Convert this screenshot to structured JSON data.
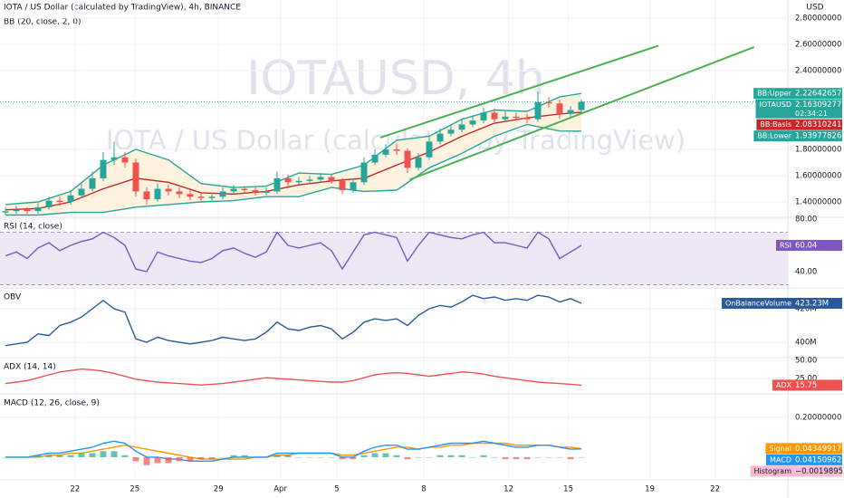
{
  "chart_data": [
    {
      "type": "candlestick",
      "title": "IOTA / US Dollar (calculated by TradingView), 4h, BINANCE",
      "subtitle": "BB (20, close, 2, 0)",
      "watermark": [
        "IOTAUSD, 4h",
        "IOTA / US Dollar (calculated by TradingView)"
      ],
      "currency": "USD",
      "symbol": "IOTAUSD",
      "countdown": "02:34:21",
      "up_color": "#26a69a",
      "down_color": "#ef5350",
      "grid": true,
      "xlim": [
        -0.5,
        72
      ],
      "xticks": [
        {
          "value": 6.4,
          "label": "22"
        },
        {
          "value": 11.9,
          "label": "25"
        },
        {
          "value": 19.6,
          "label": "29"
        },
        {
          "value": 25.3,
          "label": "Apr"
        },
        {
          "value": 30.5,
          "label": "5"
        },
        {
          "value": 38.5,
          "label": "8"
        },
        {
          "value": 46.3,
          "label": "12"
        },
        {
          "value": 51.8,
          "label": "15"
        },
        {
          "value": 59.3,
          "label": "19"
        },
        {
          "value": 65.3,
          "label": "22"
        }
      ],
      "ylim": [
        1.283,
        2.938
      ],
      "yticks": [
        {
          "value": 1.4,
          "label": "1.40000000"
        },
        {
          "value": 1.6,
          "label": "1.60000000"
        },
        {
          "value": 1.8,
          "label": "1.80000000"
        },
        {
          "value": 2.4,
          "label": "2.40000000"
        },
        {
          "value": 2.6,
          "label": "2.60000000"
        },
        {
          "value": 2.8,
          "label": "2.80000000"
        }
      ],
      "open": [
        1.32,
        1.33,
        1.34,
        1.33,
        1.36,
        1.41,
        1.4,
        1.45,
        1.5,
        1.58,
        1.72,
        1.74,
        1.7,
        1.48,
        1.42,
        1.5,
        1.48,
        1.46,
        1.44,
        1.43,
        1.44,
        1.48,
        1.5,
        1.49,
        1.47,
        1.48,
        1.58,
        1.55,
        1.56,
        1.57,
        1.59,
        1.56,
        1.49,
        1.55,
        1.7,
        1.76,
        1.8,
        1.79,
        1.66,
        1.74,
        1.86,
        1.92,
        1.95,
        1.99,
        2.02,
        2.08,
        2.03,
        2.05,
        2.04,
        2.03,
        2.16,
        2.15,
        2.07,
        2.1
      ],
      "high": [
        1.36,
        1.37,
        1.36,
        1.39,
        1.44,
        1.44,
        1.49,
        1.54,
        1.63,
        1.78,
        1.86,
        1.78,
        1.73,
        1.51,
        1.54,
        1.53,
        1.51,
        1.49,
        1.47,
        1.47,
        1.51,
        1.53,
        1.52,
        1.52,
        1.51,
        1.63,
        1.61,
        1.59,
        1.6,
        1.62,
        1.61,
        1.58,
        1.58,
        1.74,
        1.8,
        1.84,
        1.84,
        1.81,
        1.77,
        1.9,
        1.96,
        1.99,
        2.03,
        2.06,
        2.12,
        2.11,
        2.09,
        2.08,
        2.07,
        2.24,
        2.2,
        2.18,
        2.13,
        2.18
      ],
      "low": [
        1.3,
        1.31,
        1.31,
        1.31,
        1.34,
        1.37,
        1.38,
        1.43,
        1.48,
        1.56,
        1.68,
        1.66,
        1.44,
        1.38,
        1.4,
        1.45,
        1.43,
        1.41,
        1.4,
        1.41,
        1.42,
        1.46,
        1.47,
        1.45,
        1.45,
        1.46,
        1.52,
        1.53,
        1.54,
        1.55,
        1.54,
        1.46,
        1.47,
        1.53,
        1.68,
        1.74,
        1.76,
        1.62,
        1.64,
        1.72,
        1.84,
        1.9,
        1.93,
        1.97,
        2.0,
        2.0,
        2.01,
        2.02,
        2.0,
        2.01,
        2.12,
        2.03,
        2.05,
        2.08
      ],
      "close": [
        1.33,
        1.34,
        1.33,
        1.36,
        1.41,
        1.4,
        1.45,
        1.5,
        1.58,
        1.72,
        1.74,
        1.7,
        1.48,
        1.42,
        1.5,
        1.48,
        1.46,
        1.44,
        1.43,
        1.44,
        1.48,
        1.5,
        1.49,
        1.47,
        1.48,
        1.58,
        1.55,
        1.56,
        1.57,
        1.59,
        1.56,
        1.49,
        1.55,
        1.7,
        1.76,
        1.8,
        1.79,
        1.66,
        1.74,
        1.86,
        1.92,
        1.95,
        1.99,
        2.02,
        2.08,
        2.03,
        2.05,
        2.04,
        2.03,
        2.16,
        2.15,
        2.07,
        2.1,
        2.16309277
      ],
      "last_color": "#26a69a",
      "band_fill": "#fff3e0",
      "series": [
        {
          "name": "BB:Upper",
          "color": "#26a69a",
          "x": [
            0,
            3,
            6,
            9,
            12,
            15,
            18,
            21,
            24,
            27,
            30,
            33,
            36,
            39,
            42,
            45,
            48,
            51,
            53
          ],
          "values": [
            1.38,
            1.4,
            1.48,
            1.68,
            1.8,
            1.72,
            1.54,
            1.51,
            1.52,
            1.62,
            1.61,
            1.68,
            1.87,
            1.9,
            2.03,
            2.1,
            2.09,
            2.2,
            2.22642657
          ]
        },
        {
          "name": "BB:Basis",
          "color": "#c62828",
          "x": [
            0,
            3,
            6,
            9,
            12,
            15,
            18,
            21,
            24,
            27,
            30,
            33,
            36,
            39,
            42,
            45,
            48,
            51,
            53
          ],
          "values": [
            1.34,
            1.35,
            1.4,
            1.5,
            1.58,
            1.55,
            1.47,
            1.46,
            1.48,
            1.53,
            1.56,
            1.58,
            1.68,
            1.78,
            1.9,
            2.0,
            2.04,
            2.07,
            2.08310241
          ]
        },
        {
          "name": "BB:Lower",
          "color": "#26a69a",
          "x": [
            0,
            3,
            6,
            9,
            12,
            15,
            18,
            21,
            24,
            27,
            30,
            33,
            36,
            39,
            42,
            45,
            48,
            51,
            53
          ],
          "values": [
            1.3,
            1.3,
            1.32,
            1.32,
            1.36,
            1.38,
            1.4,
            1.41,
            1.44,
            1.44,
            1.51,
            1.48,
            1.49,
            1.66,
            1.77,
            1.9,
            1.99,
            1.94,
            1.93977826
          ]
        }
      ],
      "trendlines": {
        "color": "#4caf50",
        "lines": [
          {
            "x": [
              34.5,
              60.1
            ],
            "y": [
              1.89,
              2.59
            ]
          },
          {
            "x": [
              37.2,
              68.9
            ],
            "y": [
              1.57,
              2.58
            ]
          }
        ]
      }
    },
    {
      "type": "line",
      "title": "RSI (14, close)",
      "ylim": [
        27.6,
        81.4
      ],
      "yticks": [
        {
          "value": 80,
          "label": "80.00"
        },
        {
          "value": 40,
          "label": "40.00"
        }
      ],
      "levels": [
        70,
        30
      ],
      "level_fill": "#ede7f6",
      "series": [
        {
          "name": "RSI",
          "color": "#7e57c2",
          "values": [
            52,
            55,
            50,
            58,
            62,
            56,
            60,
            63,
            65,
            70,
            66,
            60,
            42,
            40,
            55,
            52,
            50,
            48,
            47,
            50,
            56,
            58,
            54,
            51,
            55,
            70,
            60,
            58,
            60,
            62,
            56,
            42,
            55,
            68,
            70,
            68,
            66,
            48,
            60,
            70,
            68,
            66,
            65,
            68,
            70,
            62,
            62,
            60,
            58,
            70,
            65,
            50,
            55,
            60.04
          ]
        }
      ]
    },
    {
      "type": "line",
      "title": "OBV",
      "ylim": [
        390.8,
        432.4
      ],
      "yticks": [
        {
          "value": 420,
          "label": "420M"
        },
        {
          "value": 400,
          "label": "400M"
        }
      ],
      "series": [
        {
          "name": "OnBalanceVolume",
          "color": "#2a5a9a",
          "values": [
            398,
            399,
            400,
            405,
            404,
            410,
            412,
            415,
            420,
            425,
            420,
            418,
            402,
            400,
            403,
            401,
            400,
            399,
            400,
            401,
            403,
            402,
            401,
            402,
            406,
            412,
            408,
            407,
            409,
            410,
            408,
            402,
            406,
            412,
            414,
            413,
            414,
            410,
            416,
            420,
            422,
            421,
            424,
            428,
            426,
            427,
            425,
            426,
            425,
            428,
            427,
            424,
            426,
            423.23
          ],
          "value_labels": {
            "53": "423.23M"
          }
        }
      ]
    },
    {
      "type": "line",
      "title": "ADX (14, 14)",
      "ylim": [
        3.75,
        53.75
      ],
      "yticks": [
        {
          "value": 50,
          "label": "50.00"
        },
        {
          "value": 25,
          "label": "25.00"
        }
      ],
      "series": [
        {
          "name": "ADX",
          "color": "#ef5350",
          "values": [
            18,
            20,
            22,
            26,
            30,
            34,
            36,
            38,
            37,
            35,
            32,
            28,
            24,
            22,
            20,
            19,
            18,
            17,
            16,
            17,
            18,
            20,
            22,
            24,
            26,
            25,
            24,
            23,
            22,
            21,
            20,
            20,
            22,
            26,
            30,
            32,
            33,
            32,
            30,
            28,
            30,
            32,
            34,
            33,
            31,
            28,
            26,
            24,
            22,
            20,
            19,
            18,
            17,
            15.75
          ]
        }
      ]
    },
    {
      "type": "macd",
      "title": "MACD (12, 26, close, 9)",
      "ylim": [
        -0.114,
        0.318
      ],
      "yticks": [
        {
          "value": 0.2,
          "label": "0.20000000"
        }
      ],
      "series": [
        {
          "name": "Signal",
          "color": "#ff9800",
          "values": [
            0,
            0,
            0,
            0,
            0.01,
            0.01,
            0.02,
            0.02,
            0.03,
            0.04,
            0.05,
            0.06,
            0.05,
            0.04,
            0.03,
            0.02,
            0.01,
            0,
            -0.01,
            -0.01,
            -0.01,
            -0.01,
            -0.01,
            0,
            0,
            0.01,
            0.01,
            0.02,
            0.02,
            0.02,
            0.02,
            0.01,
            0.01,
            0.02,
            0.03,
            0.04,
            0.05,
            0.05,
            0.04,
            0.05,
            0.05,
            0.06,
            0.06,
            0.07,
            0.07,
            0.07,
            0.07,
            0.06,
            0.06,
            0.06,
            0.06,
            0.05,
            0.05,
            0.04349917
          ]
        },
        {
          "name": "MACD",
          "color": "#2196f3",
          "values": [
            0,
            0,
            0,
            0.01,
            0.02,
            0.02,
            0.03,
            0.04,
            0.05,
            0.07,
            0.08,
            0.07,
            0.03,
            0,
            0,
            -0.01,
            -0.01,
            -0.02,
            -0.02,
            -0.02,
            -0.01,
            0,
            0,
            0,
            0,
            0.02,
            0.02,
            0.02,
            0.02,
            0.02,
            0.02,
            0,
            0,
            0.03,
            0.05,
            0.06,
            0.06,
            0.04,
            0.04,
            0.05,
            0.06,
            0.07,
            0.07,
            0.07,
            0.08,
            0.07,
            0.06,
            0.05,
            0.05,
            0.06,
            0.06,
            0.05,
            0.04,
            0.04150962
          ]
        },
        {
          "name": "Histogram",
          "color": "#26a69a",
          "negative_color": "#ef5350",
          "values": [
            0,
            0,
            0,
            0.01,
            0.01,
            0.01,
            0.01,
            0.02,
            0.02,
            0.03,
            0.03,
            0.01,
            -0.02,
            -0.04,
            -0.03,
            -0.03,
            -0.02,
            -0.02,
            -0.01,
            -0.01,
            0,
            0.01,
            0.01,
            0,
            0,
            0.01,
            0.01,
            0,
            0,
            0,
            0,
            -0.01,
            -0.01,
            0.01,
            0.02,
            0.02,
            0.01,
            -0.01,
            0,
            0,
            0.01,
            0.01,
            0.01,
            0,
            0.01,
            0,
            -0.01,
            -0.01,
            -0.01,
            0,
            0,
            0,
            -0.01,
            -0.00198955
          ],
          "value_labels": {
            "53": "−0.00198955"
          }
        }
      ]
    }
  ]
}
